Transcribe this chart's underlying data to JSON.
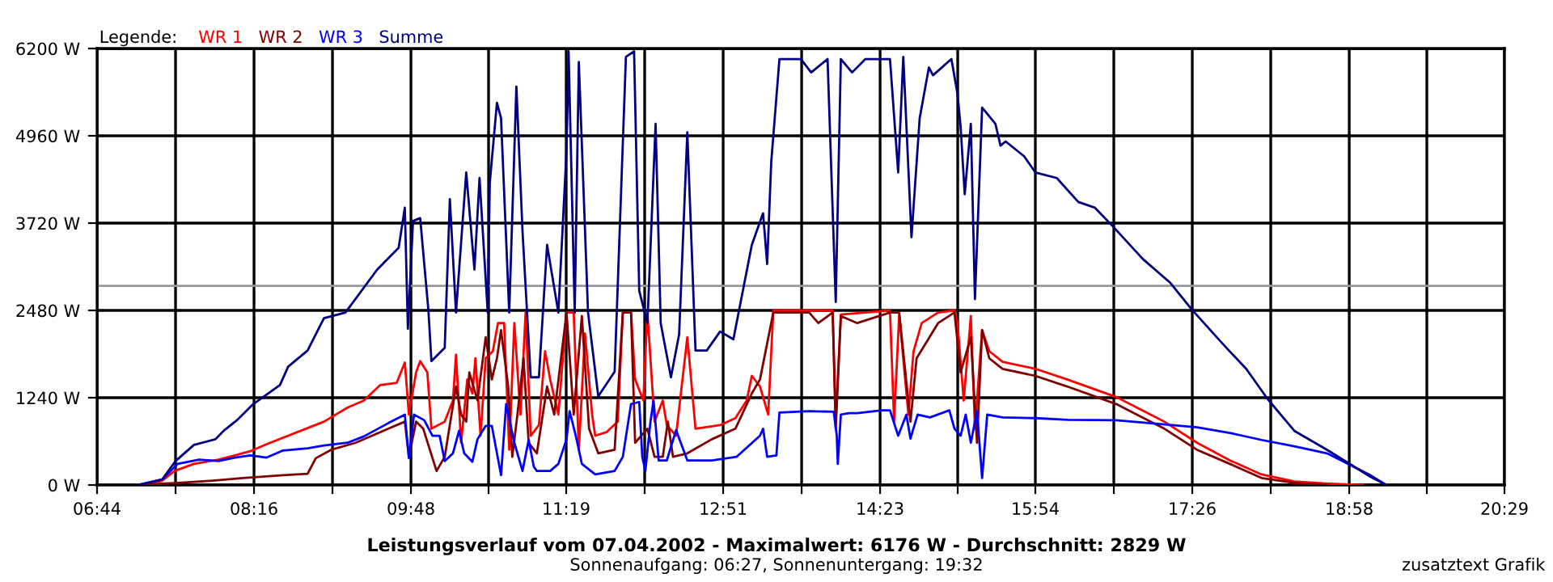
{
  "chart_data": {
    "type": "line",
    "title": "Leistungsverlauf vom 07.04.2002 - Maximalwert: 6176 W - Durchschnitt: 2829 W",
    "subtitle": "Sonnenaufgang: 06:27, Sonnenuntergang: 19:32",
    "legend_title": "Legende:",
    "annotations": [
      "zusatztext Grafik"
    ],
    "xlim": [
      6.7333,
      20.4833
    ],
    "ylim": [
      0,
      6200
    ],
    "xticks": [
      {
        "value": 6.7333,
        "label": "06:44"
      },
      {
        "value": 7.5,
        "label": null
      },
      {
        "value": 8.2667,
        "label": "08:16"
      },
      {
        "value": 9.0333,
        "label": null
      },
      {
        "value": 9.8,
        "label": "09:48"
      },
      {
        "value": 10.5583,
        "label": null
      },
      {
        "value": 11.3167,
        "label": "11:19"
      },
      {
        "value": 12.0833,
        "label": null
      },
      {
        "value": 12.85,
        "label": "12:51"
      },
      {
        "value": 13.6167,
        "label": null
      },
      {
        "value": 14.3833,
        "label": "14:23"
      },
      {
        "value": 15.1417,
        "label": null
      },
      {
        "value": 15.9,
        "label": "15:54"
      },
      {
        "value": 16.6667,
        "label": null
      },
      {
        "value": 17.4333,
        "label": "17:26"
      },
      {
        "value": 18.2,
        "label": null
      },
      {
        "value": 18.9667,
        "label": "18:58"
      },
      {
        "value": 19.725,
        "label": null
      },
      {
        "value": 20.4833,
        "label": "20:29"
      }
    ],
    "yticks": [
      {
        "value": 0,
        "label": "0 W"
      },
      {
        "value": 1240,
        "label": "1240 W"
      },
      {
        "value": 2480,
        "label": "2480 W"
      },
      {
        "value": 3720,
        "label": "3720 W"
      },
      {
        "value": 4960,
        "label": "4960 W"
      },
      {
        "value": 6200,
        "label": "6200 W"
      }
    ],
    "grid": true,
    "legend": "top left",
    "marker": "none",
    "line_style": "solid",
    "ref_lines": [
      {
        "axis": "y",
        "value": 2829,
        "color": "#999999"
      }
    ],
    "series": [
      {
        "name": "WR 1",
        "color": "#ff0000",
        "x": [
          7.13,
          7.37,
          7.49,
          7.68,
          7.92,
          8.08,
          8.23,
          8.39,
          8.95,
          9.18,
          9.34,
          9.5,
          9.66,
          9.74,
          9.78,
          9.85,
          9.89,
          9.96,
          10.0,
          10.13,
          10.21,
          10.24,
          10.29,
          10.35,
          10.4,
          10.43,
          10.48,
          10.53,
          10.6,
          10.65,
          10.71,
          10.76,
          10.81,
          10.87,
          10.92,
          10.97,
          11.05,
          11.11,
          11.16,
          11.24,
          11.32,
          11.39,
          11.44,
          11.5,
          11.57,
          11.6,
          11.71,
          11.82,
          11.87,
          11.95,
          11.99,
          12.07,
          12.11,
          12.18,
          12.26,
          12.3,
          12.39,
          12.5,
          12.58,
          12.82,
          12.97,
          13.08,
          13.13,
          13.21,
          13.29,
          13.34,
          13.53,
          13.69,
          13.92,
          13.95,
          14.0,
          14.24,
          14.48,
          14.52,
          14.57,
          14.66,
          14.71,
          14.79,
          14.95,
          15.11,
          15.14,
          15.2,
          15.27,
          15.31,
          15.38,
          15.45,
          15.58,
          15.9,
          16.21,
          16.69,
          17.16,
          17.48,
          17.8,
          18.11,
          18.43,
          18.74,
          19.1
        ],
        "values": [
          0,
          60,
          200,
          300,
          360,
          420,
          480,
          580,
          900,
          1100,
          1200,
          1420,
          1450,
          1740,
          1000,
          1600,
          1760,
          1600,
          800,
          900,
          1200,
          1850,
          600,
          1500,
          1300,
          1800,
          700,
          1800,
          1900,
          2300,
          2300,
          500,
          2300,
          1000,
          2450,
          700,
          850,
          1900,
          1500,
          1000,
          2450,
          2450,
          500,
          2150,
          1000,
          700,
          750,
          900,
          2450,
          2450,
          1500,
          1200,
          2450,
          900,
          1200,
          850,
          700,
          2100,
          800,
          850,
          950,
          1200,
          1550,
          1400,
          1000,
          2480,
          2480,
          2480,
          2480,
          900,
          2420,
          2450,
          2480,
          900,
          2420,
          1000,
          1900,
          2300,
          2450,
          2480,
          2300,
          1200,
          2400,
          800,
          2200,
          1900,
          1750,
          1650,
          1500,
          1250,
          900,
          600,
          350,
          150,
          50,
          20,
          0
        ]
      },
      {
        "name": "WR 2",
        "color": "#800000",
        "x": [
          7.13,
          7.52,
          7.84,
          8.16,
          8.55,
          8.79,
          8.87,
          9.02,
          9.26,
          9.58,
          9.74,
          9.78,
          9.85,
          9.92,
          10.05,
          10.13,
          10.24,
          10.29,
          10.34,
          10.37,
          10.45,
          10.53,
          10.59,
          10.64,
          10.68,
          10.75,
          10.79,
          10.84,
          10.9,
          10.95,
          11.03,
          11.13,
          11.2,
          11.32,
          11.39,
          11.47,
          11.54,
          11.63,
          11.79,
          11.87,
          11.95,
          11.99,
          12.11,
          12.18,
          12.26,
          12.31,
          12.36,
          12.5,
          12.74,
          12.97,
          13.13,
          13.21,
          13.34,
          13.69,
          13.78,
          13.92,
          13.95,
          14.0,
          14.16,
          14.48,
          14.57,
          14.68,
          14.74,
          14.95,
          15.11,
          15.17,
          15.27,
          15.33,
          15.38,
          15.45,
          15.58,
          15.9,
          16.21,
          16.69,
          17.16,
          17.48,
          17.8,
          18.11,
          18.43,
          18.74
        ],
        "values": [
          0,
          30,
          60,
          100,
          140,
          160,
          380,
          500,
          600,
          800,
          900,
          400,
          900,
          800,
          200,
          400,
          1400,
          1000,
          900,
          1600,
          1200,
          2100,
          1500,
          1800,
          2200,
          1400,
          400,
          1000,
          1800,
          600,
          450,
          1400,
          1000,
          2450,
          1000,
          2400,
          800,
          450,
          500,
          2450,
          2450,
          600,
          800,
          400,
          400,
          900,
          400,
          450,
          650,
          800,
          1300,
          1500,
          2450,
          2450,
          2300,
          2450,
          800,
          2400,
          2300,
          2450,
          2450,
          900,
          1800,
          2300,
          2450,
          1600,
          2100,
          600,
          2200,
          1800,
          1650,
          1550,
          1400,
          1150,
          800,
          500,
          300,
          100,
          30,
          0
        ]
      },
      {
        "name": "WR 3",
        "color": "#0000ff",
        "x": [
          7.13,
          7.37,
          7.52,
          7.73,
          7.92,
          8.08,
          8.23,
          8.39,
          8.55,
          8.79,
          8.95,
          9.18,
          9.34,
          9.58,
          9.74,
          9.78,
          9.83,
          9.93,
          10.01,
          10.08,
          10.13,
          10.21,
          10.27,
          10.32,
          10.4,
          10.45,
          10.53,
          10.59,
          10.68,
          10.73,
          10.81,
          10.89,
          10.95,
          11.0,
          11.03,
          11.16,
          11.24,
          11.32,
          11.35,
          11.41,
          11.47,
          11.6,
          11.79,
          11.87,
          11.95,
          12.03,
          12.06,
          12.09,
          12.14,
          12.17,
          12.22,
          12.3,
          12.39,
          12.5,
          12.74,
          12.98,
          13.21,
          13.24,
          13.28,
          13.37,
          13.4,
          13.69,
          13.93,
          13.96,
          13.97,
          14.0,
          14.08,
          14.16,
          14.4,
          14.48,
          14.56,
          14.64,
          14.68,
          14.75,
          14.87,
          15.06,
          15.11,
          15.17,
          15.22,
          15.27,
          15.33,
          15.38,
          15.43,
          15.58,
          15.9,
          16.22,
          16.69,
          17.17,
          17.48,
          17.8,
          18.11,
          18.43,
          18.75,
          18.98,
          19.16,
          19.33
        ],
        "values": [
          0,
          80,
          300,
          360,
          340,
          390,
          420,
          390,
          490,
          520,
          560,
          600,
          690,
          880,
          1000,
          380,
          1000,
          920,
          700,
          700,
          340,
          450,
          770,
          450,
          330,
          650,
          840,
          840,
          140,
          1150,
          600,
          200,
          640,
          260,
          200,
          200,
          300,
          650,
          1050,
          700,
          300,
          150,
          200,
          400,
          1150,
          1180,
          400,
          200,
          900,
          1200,
          350,
          350,
          780,
          350,
          350,
          400,
          700,
          800,
          400,
          420,
          1030,
          1050,
          1040,
          700,
          300,
          1000,
          1020,
          1020,
          1060,
          1060,
          700,
          1000,
          660,
          1000,
          960,
          1060,
          800,
          700,
          1000,
          600,
          1050,
          100,
          1000,
          960,
          950,
          925,
          920,
          860,
          820,
          740,
          640,
          550,
          450,
          280,
          150,
          0
        ]
      },
      {
        "name": "Summe",
        "color": "#000080",
        "x": [
          7.13,
          7.37,
          7.5,
          7.68,
          7.89,
          7.97,
          8.1,
          8.26,
          8.52,
          8.6,
          8.79,
          8.95,
          9.16,
          9.47,
          9.68,
          9.74,
          9.77,
          9.82,
          9.89,
          9.97,
          10.0,
          10.13,
          10.18,
          10.24,
          10.34,
          10.42,
          10.47,
          10.55,
          10.57,
          10.64,
          10.68,
          10.76,
          10.83,
          10.89,
          10.97,
          11.05,
          11.13,
          11.24,
          11.32,
          11.34,
          11.4,
          11.44,
          11.53,
          11.63,
          11.79,
          11.9,
          11.98,
          12.03,
          12.11,
          12.19,
          12.24,
          12.34,
          12.42,
          12.5,
          12.58,
          12.69,
          12.82,
          12.95,
          13.13,
          13.24,
          13.28,
          13.32,
          13.4,
          13.61,
          13.71,
          13.87,
          13.95,
          14.0,
          14.11,
          14.24,
          14.48,
          14.56,
          14.61,
          14.69,
          14.77,
          14.86,
          14.9,
          15.08,
          15.14,
          15.17,
          15.21,
          15.27,
          15.31,
          15.38,
          15.51,
          15.56,
          15.61,
          15.79,
          15.9,
          16.11,
          16.32,
          16.48,
          16.66,
          16.95,
          17.22,
          17.43,
          17.74,
          17.96,
          18.17,
          18.43,
          18.75,
          18.96,
          19.17,
          19.33
        ],
        "values": [
          0,
          80,
          340,
          570,
          650,
          770,
          920,
          1150,
          1420,
          1680,
          1910,
          2370,
          2450,
          3060,
          3370,
          3940,
          2220,
          3750,
          3790,
          2490,
          1760,
          1950,
          4060,
          2450,
          4440,
          3060,
          4360,
          2450,
          4290,
          5430,
          5210,
          2450,
          5660,
          3600,
          1530,
          1530,
          3410,
          2450,
          4750,
          6160,
          2450,
          6010,
          2450,
          1260,
          1610,
          6080,
          6160,
          2760,
          2300,
          5130,
          2300,
          1530,
          2140,
          5010,
          1910,
          1910,
          2180,
          2070,
          3410,
          3860,
          3140,
          4590,
          6050,
          6050,
          5860,
          6050,
          2600,
          6050,
          5860,
          6050,
          6050,
          4440,
          6080,
          3520,
          5210,
          5930,
          5820,
          6050,
          5550,
          5090,
          4130,
          5130,
          2640,
          5360,
          5130,
          4820,
          4880,
          4670,
          4440,
          4360,
          4020,
          3940,
          3670,
          3210,
          2870,
          2490,
          1990,
          1650,
          1220,
          770,
          500,
          310,
          120,
          0
        ]
      }
    ]
  }
}
